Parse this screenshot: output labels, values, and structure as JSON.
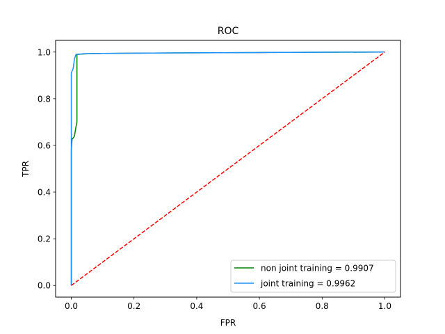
{
  "chart_data": {
    "type": "line",
    "title": "ROC",
    "xlabel": "FPR",
    "ylabel": "TPR",
    "xlim": [
      -0.05,
      1.05
    ],
    "ylim": [
      -0.05,
      1.05
    ],
    "xticks": [
      "0.0",
      "0.2",
      "0.4",
      "0.6",
      "0.8",
      "1.0"
    ],
    "yticks": [
      "0.0",
      "0.2",
      "0.4",
      "0.6",
      "0.8",
      "1.0"
    ],
    "grid": false,
    "legend_position": "lower-right",
    "series": [
      {
        "name": "non joint training = 0.9907",
        "color": "#008000",
        "style": "solid",
        "x": [
          0.0,
          0.0,
          0.002,
          0.003,
          0.005,
          0.01,
          0.015,
          0.018,
          0.018,
          0.02,
          0.04,
          0.1,
          0.3,
          0.6,
          1.0
        ],
        "y": [
          0.0,
          0.58,
          0.62,
          0.63,
          0.63,
          0.64,
          0.68,
          0.7,
          0.99,
          0.99,
          0.992,
          0.994,
          0.996,
          0.998,
          1.0
        ]
      },
      {
        "name": "joint training = 0.9962",
        "color": "#1E90FF",
        "style": "solid",
        "x": [
          0.0,
          0.0,
          0.0,
          0.003,
          0.006,
          0.01,
          0.015,
          0.02,
          0.04,
          0.1,
          0.3,
          0.6,
          1.0
        ],
        "y": [
          0.0,
          0.6,
          0.91,
          0.92,
          0.93,
          0.97,
          0.99,
          0.99,
          0.993,
          0.994,
          0.996,
          0.998,
          1.0
        ]
      },
      {
        "name": "",
        "color": "#FF0000",
        "style": "dashed",
        "x": [
          0.0,
          1.0
        ],
        "y": [
          0.0,
          1.0
        ]
      }
    ]
  }
}
